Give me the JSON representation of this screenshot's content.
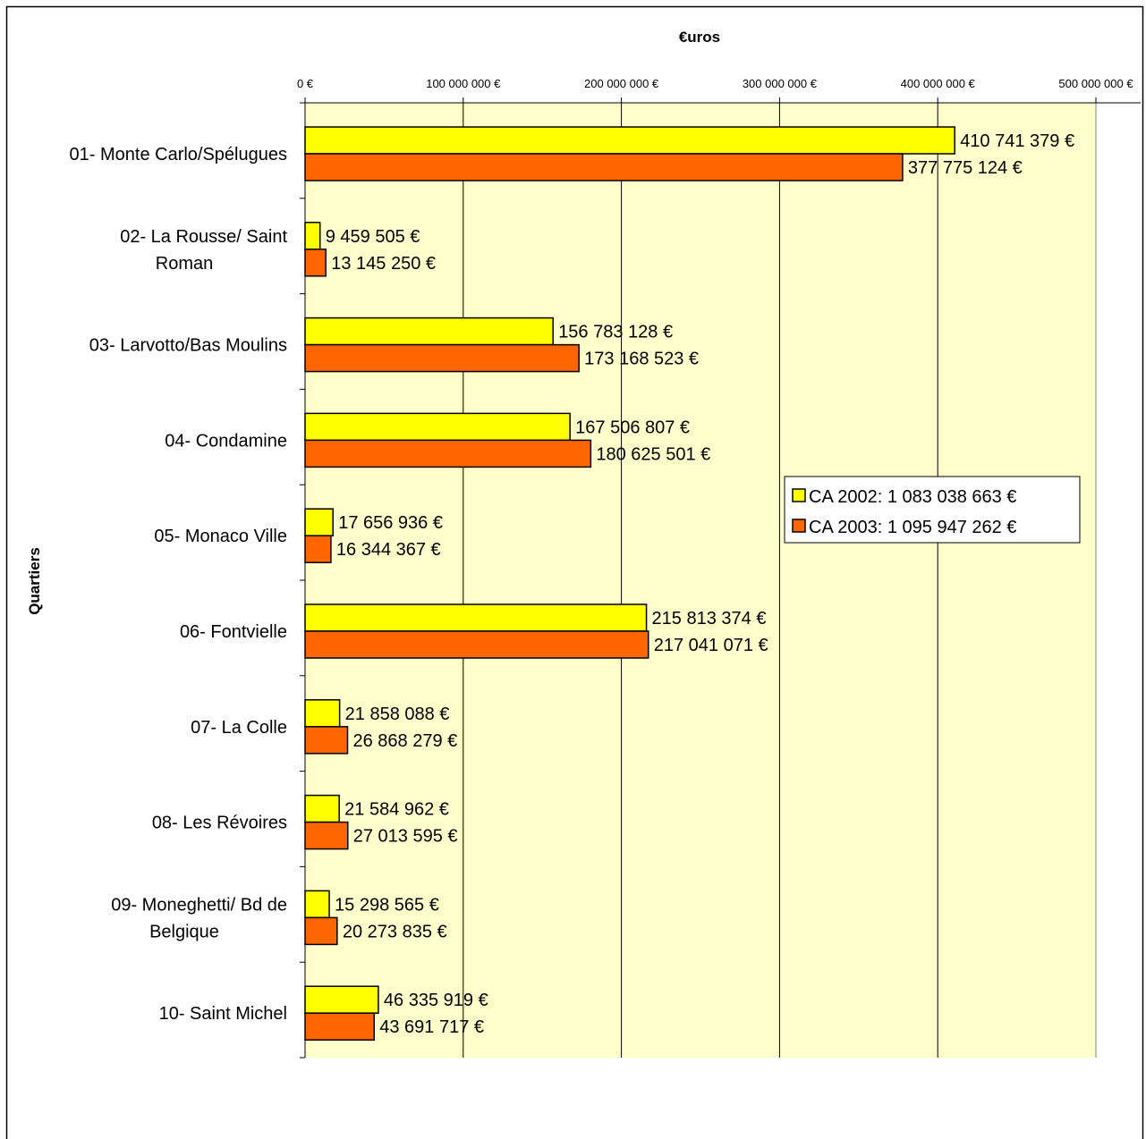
{
  "chart_data": {
    "type": "bar",
    "orientation": "horizontal",
    "title": "€uros",
    "xlabel": "€uros",
    "ylabel": "Quartiers",
    "xlim": [
      0,
      500000000
    ],
    "x_ticks": [
      0,
      100000000,
      200000000,
      300000000,
      400000000,
      500000000
    ],
    "x_tick_labels": [
      "0 €",
      "100 000 000 €",
      "200 000 000 €",
      "300 000 000 €",
      "400 000 000 €",
      "500 000 000 €"
    ],
    "grid": true,
    "legend_position": "right",
    "categories": [
      [
        "01- Monte Carlo/Spélugues"
      ],
      [
        "02- La Rousse/ Saint",
        "Roman"
      ],
      [
        "03- Larvotto/Bas Moulins"
      ],
      [
        "04- Condamine"
      ],
      [
        "05- Monaco Ville"
      ],
      [
        "06- Fontvielle"
      ],
      [
        "07- La Colle"
      ],
      [
        "08- Les Révoires"
      ],
      [
        "09- Moneghetti/ Bd de",
        "Belgique"
      ],
      [
        "10- Saint Michel"
      ]
    ],
    "series": [
      {
        "name": "CA 2002: 1 083 038 663 €",
        "color": "#ffff00",
        "values": [
          410741379,
          9459505,
          156783128,
          167506807,
          17656936,
          215813374,
          21858088,
          21584962,
          15298565,
          46335919
        ],
        "labels": [
          "410 741 379 €",
          "9 459 505 €",
          "156 783 128 €",
          "167 506 807 €",
          "17 656 936 €",
          "215 813 374 €",
          "21 858 088 €",
          "21 584 962 €",
          "15 298 565 €",
          "46 335 919 €"
        ]
      },
      {
        "name": "CA 2003: 1 095 947 262 €",
        "color": "#ff6600",
        "values": [
          377775124,
          13145250,
          173168523,
          180625501,
          16344367,
          217041071,
          26868279,
          27013595,
          20273835,
          43691717
        ],
        "labels": [
          "377 775 124 €",
          "13 145 250 €",
          "173 168 523 €",
          "180 625 501 €",
          "16 344 367 €",
          "217 041 071 €",
          "26 868 279 €",
          "27 013 595 €",
          "20 273 835 €",
          "43 691 717 €"
        ]
      }
    ],
    "plot_background": "#ffffcc"
  }
}
